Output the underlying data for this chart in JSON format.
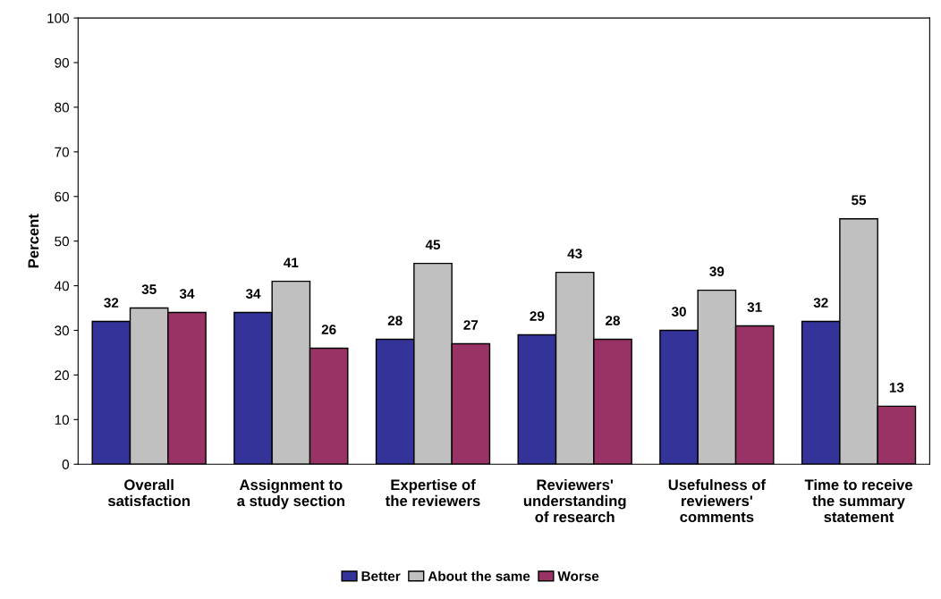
{
  "chart_data": {
    "type": "bar",
    "ylabel": "Percent",
    "categories": [
      "Overall\nsatisfaction",
      "Assignment to\na study section",
      "Expertise of\nthe reviewers",
      "Reviewers'\nunderstanding\nof research",
      "Usefulness of\nreviewers'\ncomments",
      "Time to receive\nthe summary\nstatement"
    ],
    "series": [
      {
        "name": "Better",
        "color": "#333399",
        "values": [
          32,
          34,
          28,
          29,
          30,
          32
        ]
      },
      {
        "name": "About the same",
        "color": "#c0c0c0",
        "values": [
          35,
          41,
          45,
          43,
          39,
          55
        ]
      },
      {
        "name": "Worse",
        "color": "#993366",
        "values": [
          34,
          26,
          27,
          28,
          31,
          13
        ]
      }
    ],
    "ylim": [
      0,
      100
    ],
    "yticks": [
      0,
      10,
      20,
      30,
      40,
      50,
      60,
      70,
      80,
      90,
      100
    ],
    "data_labels": true,
    "grid": false,
    "legend": "bottom"
  }
}
